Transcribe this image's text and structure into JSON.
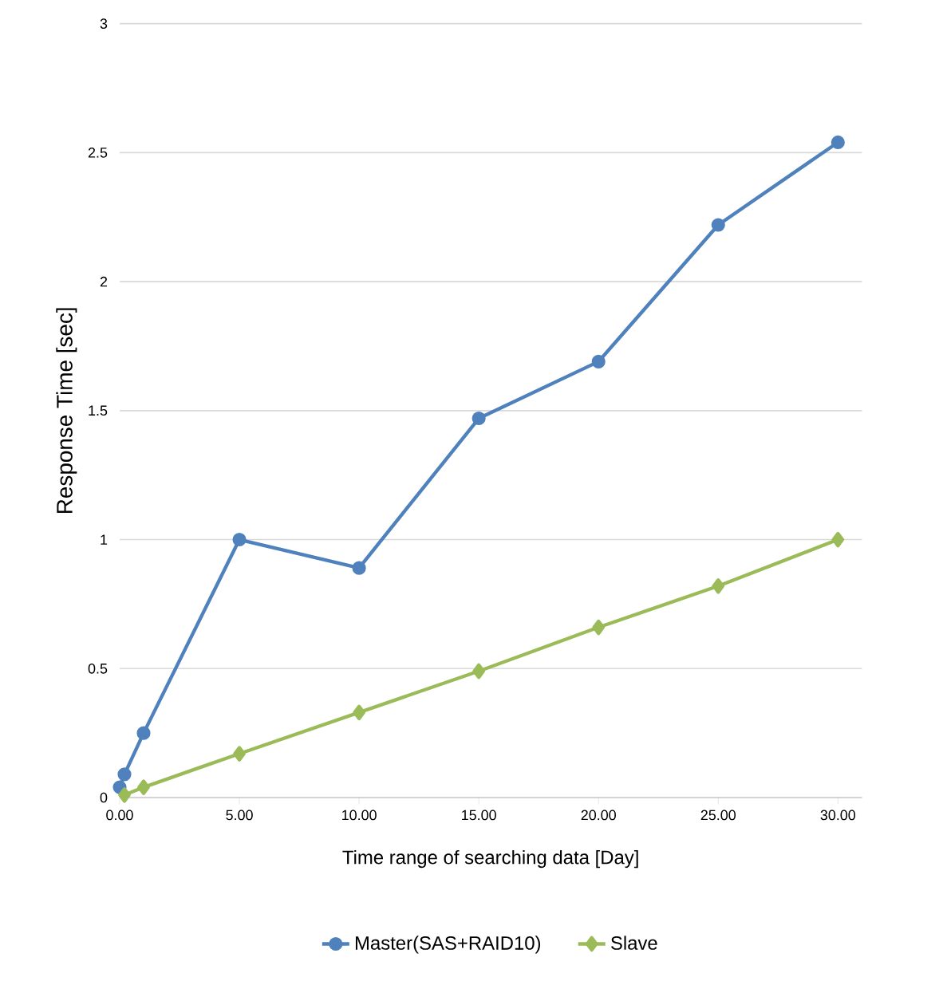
{
  "chart_data": {
    "type": "line",
    "xlabel": "Time range of searching data [Day]",
    "ylabel": "Response Time [sec]",
    "xlim": [
      0,
      31
    ],
    "ylim": [
      0,
      3
    ],
    "xticks": [
      {
        "value": 0,
        "label": "0.00"
      },
      {
        "value": 5,
        "label": "5.00"
      },
      {
        "value": 10,
        "label": "10.00"
      },
      {
        "value": 15,
        "label": "15.00"
      },
      {
        "value": 20,
        "label": "20.00"
      },
      {
        "value": 25,
        "label": "25.00"
      },
      {
        "value": 30,
        "label": "30.00"
      }
    ],
    "yticks": [
      0,
      0.5,
      1,
      1.5,
      2,
      2.5,
      3
    ],
    "grid": "y",
    "legend": "bottom",
    "line_style": "solid",
    "series": [
      {
        "name": "Master(SAS+RAID10)",
        "color": "#4f81bd",
        "marker": "circle",
        "x": [
          0,
          0.2,
          1,
          5,
          10,
          15,
          20,
          25,
          30
        ],
        "values": [
          0.04,
          0.09,
          0.25,
          1.0,
          0.89,
          1.47,
          1.69,
          2.22,
          2.54
        ]
      },
      {
        "name": "Slave",
        "color": "#9bbb59",
        "marker": "diamond",
        "x": [
          0.2,
          1,
          5,
          10,
          15,
          20,
          25,
          30
        ],
        "values": [
          0.01,
          0.04,
          0.17,
          0.33,
          0.49,
          0.66,
          0.82,
          1.0
        ]
      }
    ]
  }
}
